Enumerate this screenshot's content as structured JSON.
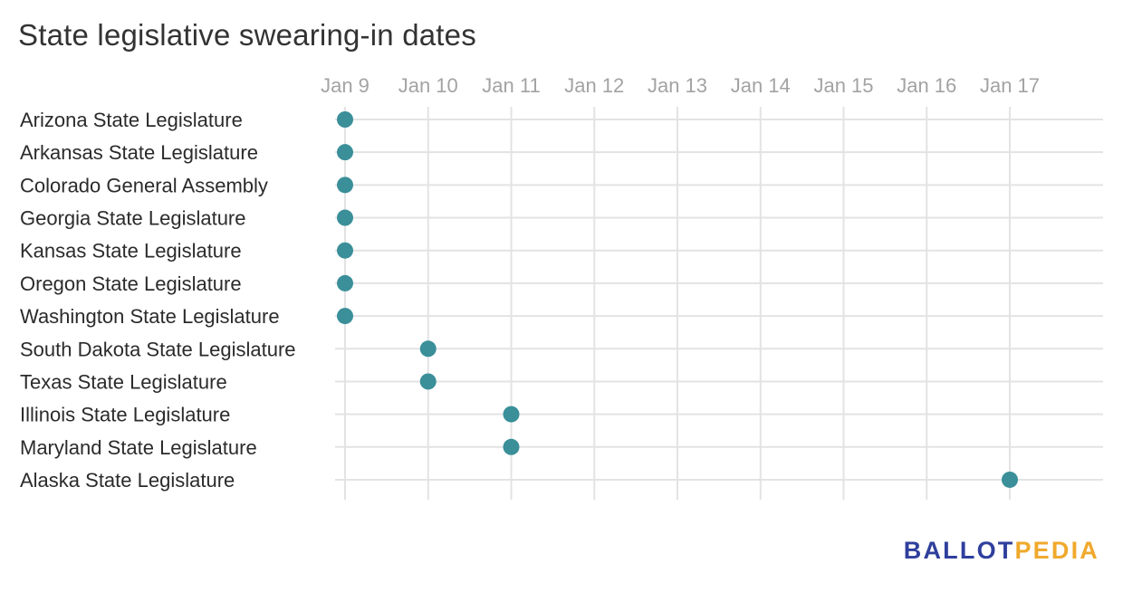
{
  "brand": {
    "logo_left": "BALLOT",
    "logo_right": "PEDIA",
    "logo_left_color": "#2f3f9d",
    "logo_right_color": "#f0a92d"
  },
  "chart_data": {
    "type": "scatter",
    "title": "State legislative swearing-in dates",
    "xlabel": "",
    "ylabel": "",
    "x_ticks": [
      "Jan 9",
      "Jan 10",
      "Jan 11",
      "Jan 12",
      "Jan 13",
      "Jan 14",
      "Jan 15",
      "Jan 16",
      "Jan 17"
    ],
    "xlim": [
      "Jan 9",
      "Jan 17"
    ],
    "grid": true,
    "point_color": "#3a8f99",
    "categories": [
      "Arizona State Legislature",
      "Arkansas State Legislature",
      "Colorado General Assembly",
      "Georgia State Legislature",
      "Kansas State Legislature",
      "Oregon State Legislature",
      "Washington State Legislature",
      "South Dakota State Legislature",
      "Texas State Legislature",
      "Illinois State Legislature",
      "Maryland State Legislature",
      "Alaska State Legislature"
    ],
    "values": [
      "Jan 9",
      "Jan 9",
      "Jan 9",
      "Jan 9",
      "Jan 9",
      "Jan 9",
      "Jan 9",
      "Jan 10",
      "Jan 10",
      "Jan 11",
      "Jan 11",
      "Jan 17"
    ]
  }
}
